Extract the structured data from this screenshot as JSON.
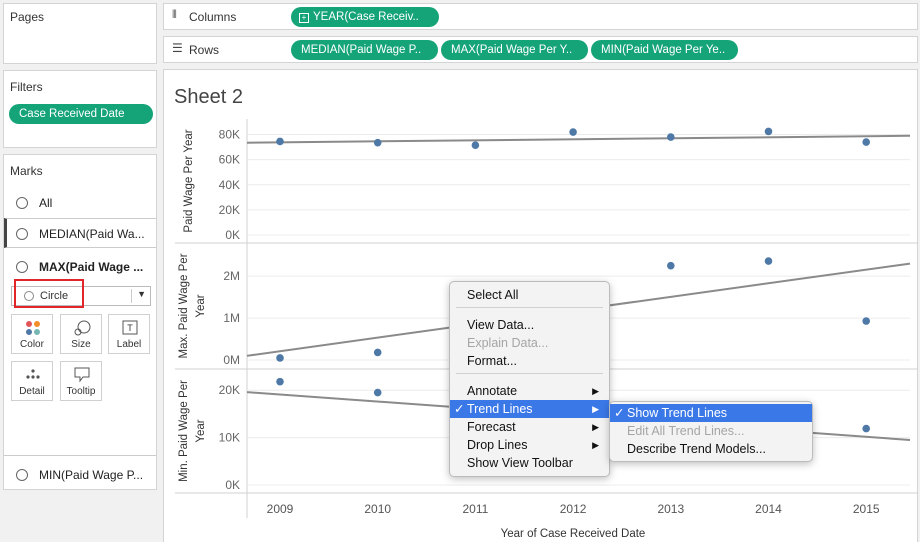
{
  "left_panel": {
    "pages_title": "Pages",
    "filters_title": "Filters",
    "filter_pill": "Case Received Date",
    "marks_title": "Marks",
    "mark_rows": [
      "All",
      "MEDIAN(Paid Wa...",
      "MAX(Paid Wage ...",
      "MIN(Paid Wage P..."
    ],
    "mark_type": "Circle",
    "mark_buttons": [
      "Color",
      "Size",
      "Label",
      "Detail",
      "Tooltip"
    ]
  },
  "shelves": {
    "columns_label": "Columns",
    "columns_pill": "YEAR(Case Receiv..",
    "rows_label": "Rows",
    "rows_pills": [
      "MEDIAN(Paid Wage P..",
      "MAX(Paid Wage Per Y..",
      "MIN(Paid Wage Per Ye.."
    ]
  },
  "sheet": {
    "title": "Sheet 2",
    "x_axis_title": "Year of Case Received Date"
  },
  "chart_data": {
    "type": "scatter",
    "x_categories": [
      "2009",
      "2010",
      "2011",
      "2012",
      "2013",
      "2014",
      "2015"
    ],
    "panes": [
      {
        "y_axis_title": "Paid Wage Per Year",
        "ticks": [
          0,
          20000,
          40000,
          60000,
          80000
        ],
        "tick_labels": [
          "0K",
          "20K",
          "40K",
          "60K",
          "80K"
        ],
        "ylim": [
          0,
          86000
        ],
        "values": [
          74500,
          73500,
          71500,
          82000,
          78000,
          82500,
          74000
        ],
        "trend_line": [
          73500,
          79000
        ]
      },
      {
        "y_axis_title": "Max. Paid Wage Per Year",
        "ticks": [
          0,
          1000000,
          2000000
        ],
        "tick_labels": [
          "0M",
          "1M",
          "2M"
        ],
        "ylim": [
          0,
          2600000
        ],
        "values": [
          50000,
          180000,
          null,
          null,
          2250000,
          2360000,
          930000
        ],
        "trend_line": [
          100000,
          2300000
        ]
      },
      {
        "y_axis_title": "Min. Paid Wage Per Year",
        "ticks": [
          0,
          10000,
          20000
        ],
        "tick_labels": [
          "0K",
          "10K",
          "20K"
        ],
        "ylim": [
          0,
          23000
        ],
        "values": [
          21800,
          19500,
          null,
          null,
          null,
          null,
          11900
        ],
        "trend_line": [
          19600,
          9500
        ]
      }
    ],
    "mark_color": "#4e79a7",
    "trend_color": "#8a8a8a"
  },
  "context_menu": {
    "items": [
      {
        "label": "Select All",
        "check": "",
        "disabled": false,
        "highlighted": false,
        "submenu": false
      },
      {
        "label": "View Data...",
        "check": "",
        "disabled": false,
        "highlighted": false,
        "submenu": false
      },
      {
        "label": "Explain Data...",
        "check": "",
        "disabled": true,
        "highlighted": false,
        "submenu": false
      },
      {
        "label": "Format...",
        "check": "",
        "disabled": false,
        "highlighted": false,
        "submenu": false
      },
      {
        "label": "Annotate",
        "check": "",
        "disabled": false,
        "highlighted": false,
        "submenu": true
      },
      {
        "label": "Trend Lines",
        "check": "✓",
        "disabled": false,
        "highlighted": true,
        "submenu": true
      },
      {
        "label": "Forecast",
        "check": "",
        "disabled": false,
        "highlighted": false,
        "submenu": true
      },
      {
        "label": "Drop Lines",
        "check": "",
        "disabled": false,
        "highlighted": false,
        "submenu": true
      },
      {
        "label": "Show View Toolbar",
        "check": "",
        "disabled": false,
        "highlighted": false,
        "submenu": false
      }
    ],
    "arrow_glyph": "▶"
  },
  "submenu": {
    "items": [
      {
        "label": "Show Trend Lines",
        "check": "✓",
        "disabled": false,
        "highlighted": true
      },
      {
        "label": "Edit All Trend Lines...",
        "check": "",
        "disabled": true,
        "highlighted": false
      },
      {
        "label": "Describe Trend Models...",
        "check": "",
        "disabled": false,
        "highlighted": false
      }
    ]
  },
  "colors": {
    "pill": "#15a378",
    "highlight": "#3b78e7",
    "annotation_box": "#e0262b"
  }
}
